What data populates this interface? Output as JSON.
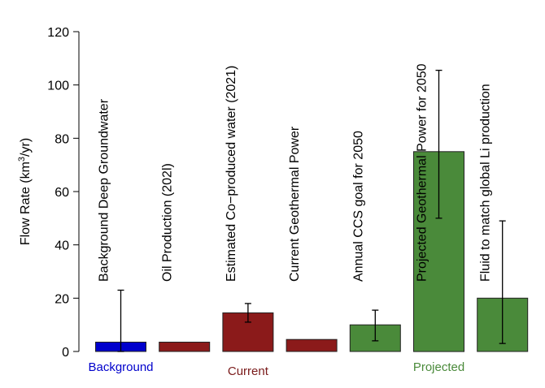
{
  "chart_data": {
    "type": "bar",
    "ylabel_main": "Flow Rate (km",
    "ylabel_sup": "3",
    "ylabel_tail": "/yr)",
    "ylim": [
      0,
      120
    ],
    "yticks": [
      "0",
      "20",
      "40",
      "60",
      "80",
      "100",
      "120"
    ],
    "ytick_values": [
      0,
      20,
      40,
      60,
      80,
      100,
      120
    ],
    "categories": [
      "Background Deep Groundwater",
      "Oil Production (202l)",
      "Estimated Co−produced water (2021)",
      "Current Geothermal Power",
      "Annual CCS goal for 2050",
      "Projected Geothermal Power for 2050",
      "Fluid to match global Li production"
    ],
    "values": [
      3.5,
      3.5,
      14.5,
      4.5,
      10,
      75,
      20
    ],
    "error_low": [
      0,
      null,
      11,
      null,
      4,
      50,
      3
    ],
    "error_high": [
      23,
      null,
      18,
      null,
      15.5,
      105.5,
      49
    ],
    "groups": [
      "Background",
      "Current",
      "Current",
      "Current",
      "Projected",
      "Projected",
      "Projected"
    ],
    "group_labels": [
      {
        "name": "Background",
        "color": "#0000cc"
      },
      {
        "name": "Current",
        "color": "#7a1a1a"
      },
      {
        "name": "Projected",
        "color": "#4a8a3a"
      }
    ],
    "colors": {
      "Background": "#0000cc",
      "Current": "#8b1a1a",
      "Projected": "#4a8a3a"
    },
    "grid": false,
    "legend": "none"
  }
}
